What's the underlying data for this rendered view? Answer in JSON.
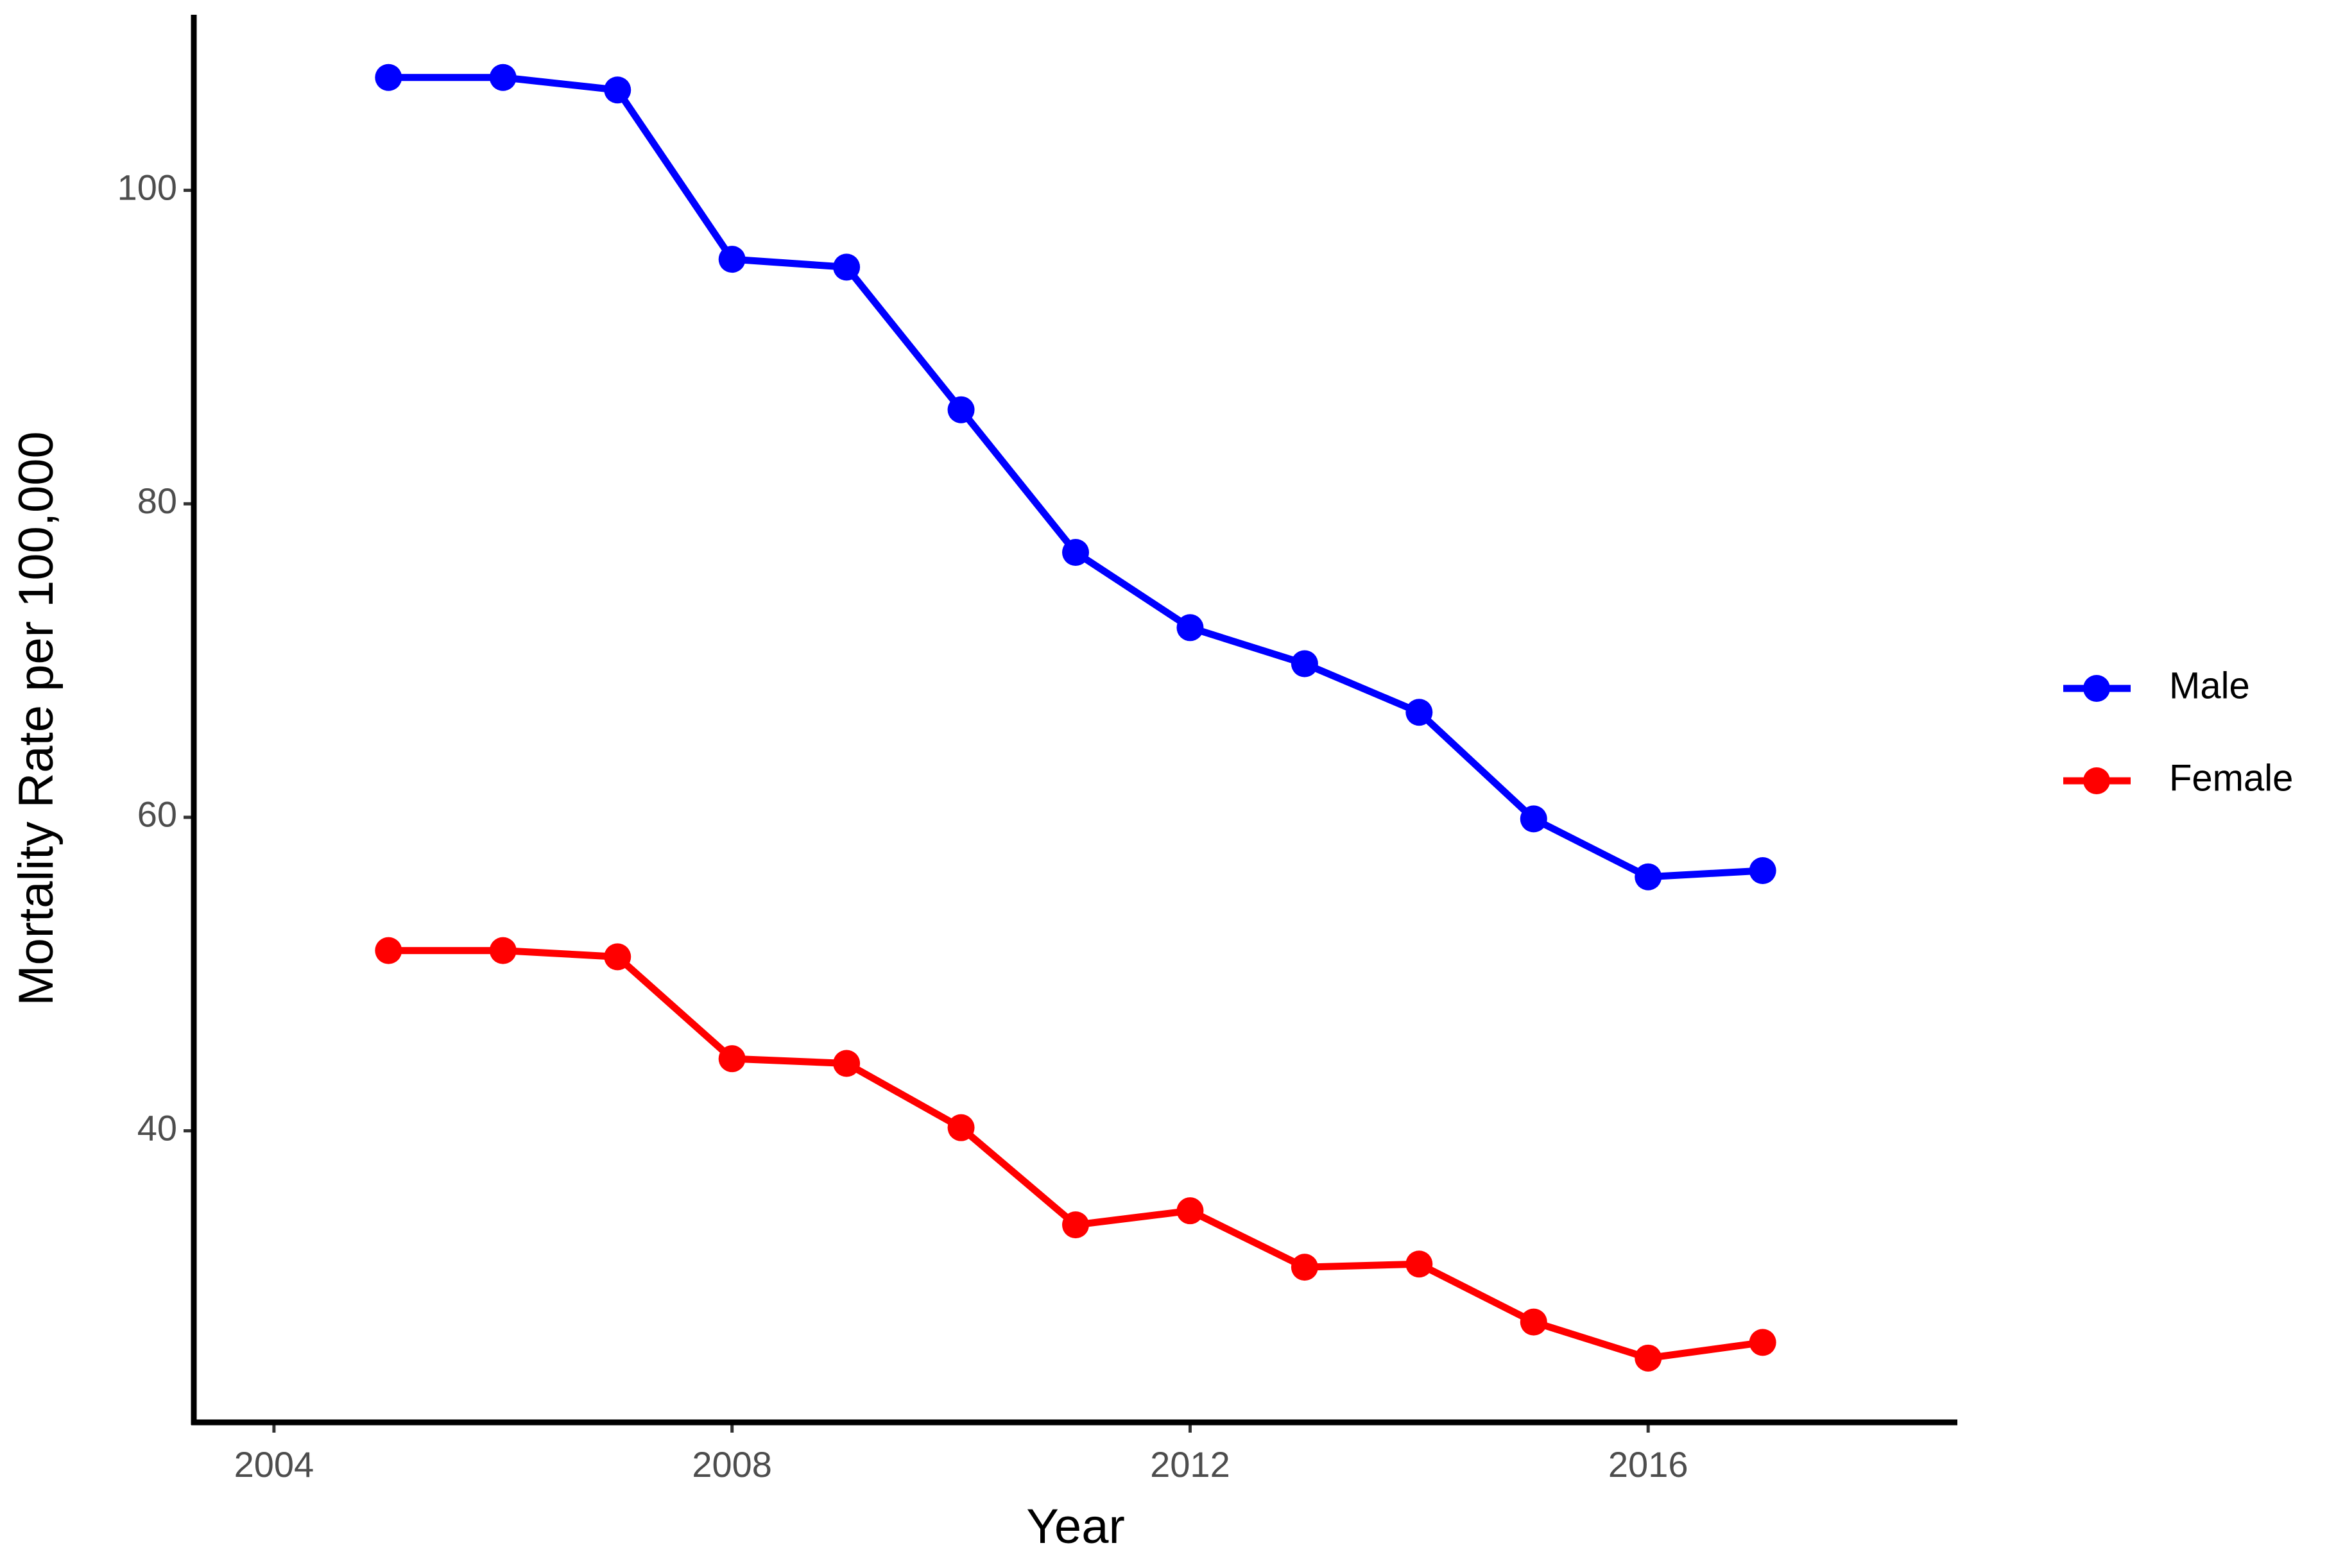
{
  "chart_data": {
    "type": "line",
    "x_label": "Year",
    "y_label": "Mortality Rate per 100,000",
    "x": [
      2005,
      2006,
      2007,
      2008,
      2009,
      2010,
      2011,
      2012,
      2013,
      2014,
      2015,
      2016,
      2017
    ],
    "series": [
      {
        "name": "Male",
        "color": "#0000ff",
        "values": [
          107.2,
          107.2,
          106.4,
          95.6,
          95.1,
          86.0,
          76.9,
          72.1,
          69.8,
          66.7,
          59.9,
          56.2,
          56.6
        ]
      },
      {
        "name": "Female",
        "color": "#ff0000",
        "values": [
          51.5,
          51.5,
          51.1,
          44.6,
          44.3,
          40.2,
          34.0,
          34.9,
          31.3,
          31.5,
          27.8,
          25.5,
          26.5
        ]
      }
    ],
    "xlim": [
      2003.3,
      2018.7
    ],
    "xticks": [
      2004,
      2008,
      2012,
      2016
    ],
    "ylim": [
      21.4,
      111.2
    ],
    "yticks": [
      40,
      60,
      80,
      100
    ],
    "grid": false,
    "legend": "right"
  }
}
